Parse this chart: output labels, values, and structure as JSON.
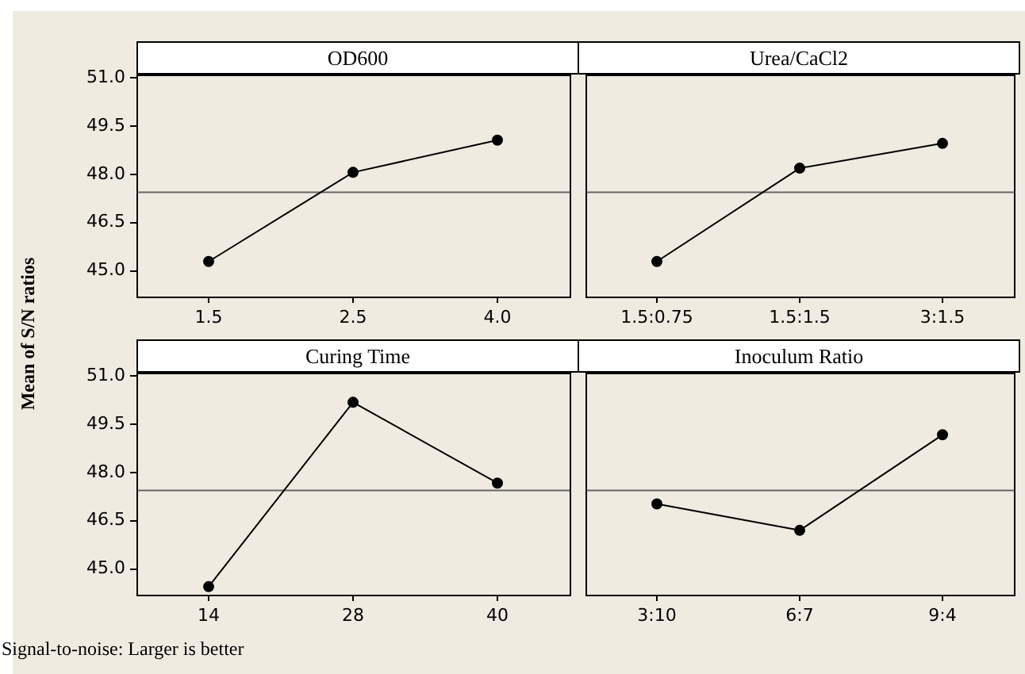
{
  "chart_data": [
    {
      "type": "line",
      "title": "OD600",
      "ylabel": "Mean of S/N ratios",
      "categories": [
        "1.5",
        "2.5",
        "4.0"
      ],
      "values": [
        45.29,
        48.06,
        49.06
      ],
      "color": "#000000",
      "marker": "circle",
      "ylim": [
        44.2,
        51.1
      ],
      "yticks": [
        {
          "value": 45,
          "label": "45.0"
        },
        {
          "value": 46.5,
          "label": "46.5"
        },
        {
          "value": 48,
          "label": "48.0"
        },
        {
          "value": 49.5,
          "label": "49.5"
        },
        {
          "value": 51,
          "label": "51.0"
        }
      ],
      "ref_lines": [
        {
          "axis": "y",
          "value": 47.44,
          "color": "#666666"
        }
      ]
    },
    {
      "type": "line",
      "title": "Urea/CaCl2",
      "categories": [
        "1.5:0.75",
        "1.5:1.5",
        "3:1.5"
      ],
      "values": [
        45.29,
        48.19,
        48.96
      ],
      "color": "#000000",
      "marker": "circle",
      "ylim": [
        44.2,
        51.1
      ],
      "tick_labels": "x",
      "ref_lines": [
        {
          "axis": "y",
          "value": 47.44,
          "color": "#666666"
        }
      ]
    },
    {
      "type": "line",
      "title": "Curing Time",
      "categories": [
        "14",
        "28",
        "40"
      ],
      "values": [
        44.45,
        50.18,
        47.67
      ],
      "color": "#000000",
      "marker": "circle",
      "ylim": [
        44.2,
        51.1
      ],
      "yticks": [
        {
          "value": 45,
          "label": "45.0"
        },
        {
          "value": 46.5,
          "label": "46.5"
        },
        {
          "value": 48,
          "label": "48.0"
        },
        {
          "value": 49.5,
          "label": "49.5"
        },
        {
          "value": 51,
          "label": "51.0"
        }
      ],
      "ref_lines": [
        {
          "axis": "y",
          "value": 47.44,
          "color": "#666666"
        }
      ],
      "annotations": [
        "Signal-to-noise: Larger is better"
      ]
    },
    {
      "type": "line",
      "title": "Inoculum Ratio",
      "categories": [
        "3:10",
        "6:7",
        "9:4"
      ],
      "values": [
        47.02,
        46.2,
        49.17
      ],
      "color": "#000000",
      "marker": "circle",
      "ylim": [
        44.2,
        51.1
      ],
      "tick_labels": "x",
      "ref_lines": [
        {
          "axis": "y",
          "value": 47.44,
          "color": "#666666"
        }
      ]
    }
  ]
}
